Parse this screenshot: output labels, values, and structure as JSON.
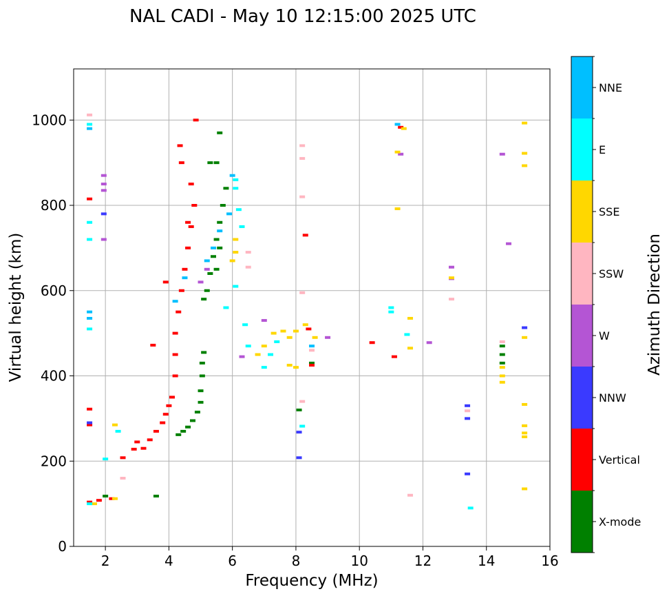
{
  "chart_data": {
    "type": "scatter",
    "title": "NAL CADI - May 10 12:15:00 2025 UTC",
    "xlabel": "Frequency (MHz)",
    "ylabel": "Virtual height (km)",
    "xlim": [
      1,
      16
    ],
    "ylim": [
      0,
      1120
    ],
    "xticks": [
      2,
      4,
      6,
      8,
      10,
      12,
      14,
      16
    ],
    "yticks": [
      0,
      200,
      400,
      600,
      800,
      1000
    ],
    "grid": true,
    "colorbar": {
      "title": "Azimuth Direction",
      "position": "right",
      "categories": [
        {
          "name": "X-mode",
          "color": "#008000"
        },
        {
          "name": "Vertical",
          "color": "#ff0000"
        },
        {
          "name": "NNW",
          "color": "#3a3aff"
        },
        {
          "name": "W",
          "color": "#b455d4"
        },
        {
          "name": "SSW",
          "color": "#ffb6c1"
        },
        {
          "name": "SSE",
          "color": "#ffd700"
        },
        {
          "name": "E",
          "color": "#00ffff"
        },
        {
          "name": "NNE",
          "color": "#00bfff"
        }
      ]
    },
    "series": [
      {
        "name": "X-mode",
        "points": [
          [
            4.3,
            262
          ],
          [
            4.45,
            270
          ],
          [
            4.6,
            280
          ],
          [
            4.75,
            295
          ],
          [
            4.9,
            315
          ],
          [
            5.0,
            338
          ],
          [
            5.0,
            365
          ],
          [
            5.05,
            400
          ],
          [
            5.05,
            430
          ],
          [
            5.1,
            455
          ],
          [
            5.1,
            580
          ],
          [
            5.2,
            600
          ],
          [
            5.3,
            640
          ],
          [
            5.4,
            680
          ],
          [
            5.5,
            720
          ],
          [
            5.6,
            760
          ],
          [
            5.7,
            800
          ],
          [
            5.8,
            840
          ],
          [
            5.5,
            900
          ],
          [
            5.6,
            970
          ],
          [
            5.3,
            900
          ],
          [
            5.5,
            650
          ],
          [
            5.6,
            700
          ],
          [
            2.0,
            118
          ],
          [
            3.6,
            118
          ],
          [
            8.1,
            320
          ],
          [
            8.5,
            430
          ],
          [
            14.5,
            470
          ],
          [
            14.5,
            450
          ],
          [
            14.5,
            430
          ]
        ]
      },
      {
        "name": "Vertical",
        "points": [
          [
            1.5,
            104
          ],
          [
            1.8,
            108
          ],
          [
            2.2,
            112
          ],
          [
            2.55,
            208
          ],
          [
            2.9,
            228
          ],
          [
            3.0,
            245
          ],
          [
            3.2,
            230
          ],
          [
            3.4,
            250
          ],
          [
            3.6,
            270
          ],
          [
            3.8,
            290
          ],
          [
            3.9,
            310
          ],
          [
            4.0,
            330
          ],
          [
            4.1,
            350
          ],
          [
            4.2,
            400
          ],
          [
            4.2,
            450
          ],
          [
            4.2,
            500
          ],
          [
            4.3,
            550
          ],
          [
            4.4,
            600
          ],
          [
            4.5,
            650
          ],
          [
            4.6,
            700
          ],
          [
            4.7,
            750
          ],
          [
            4.8,
            800
          ],
          [
            4.7,
            850
          ],
          [
            4.4,
            900
          ],
          [
            4.35,
            940
          ],
          [
            4.85,
            1000
          ],
          [
            4.6,
            760
          ],
          [
            8.3,
            730
          ],
          [
            8.4,
            510
          ],
          [
            8.5,
            425
          ],
          [
            10.4,
            478
          ],
          [
            11.1,
            445
          ],
          [
            3.5,
            472
          ],
          [
            3.9,
            620
          ],
          [
            1.5,
            815
          ],
          [
            1.5,
            322
          ],
          [
            1.5,
            285
          ],
          [
            11.3,
            983
          ]
        ]
      },
      {
        "name": "NNW",
        "points": [
          [
            1.95,
            780
          ],
          [
            8.1,
            268
          ],
          [
            8.1,
            208
          ],
          [
            13.4,
            300
          ],
          [
            13.4,
            170
          ],
          [
            13.4,
            330
          ],
          [
            15.2,
            513
          ],
          [
            1.5,
            290
          ]
        ]
      },
      {
        "name": "W",
        "points": [
          [
            1.95,
            870
          ],
          [
            1.95,
            850
          ],
          [
            1.95,
            835
          ],
          [
            1.95,
            720
          ],
          [
            12.9,
            655
          ],
          [
            12.9,
            628
          ],
          [
            14.7,
            710
          ],
          [
            14.5,
            920
          ],
          [
            12.2,
            478
          ],
          [
            11.3,
            920
          ],
          [
            7.0,
            530
          ],
          [
            9.0,
            490
          ],
          [
            6.3,
            445
          ],
          [
            5.0,
            620
          ],
          [
            5.2,
            650
          ]
        ]
      },
      {
        "name": "SSW",
        "points": [
          [
            1.5,
            1012
          ],
          [
            8.2,
            940
          ],
          [
            8.2,
            910
          ],
          [
            8.2,
            820
          ],
          [
            8.2,
            595
          ],
          [
            8.2,
            340
          ],
          [
            12.9,
            580
          ],
          [
            13.4,
            318
          ],
          [
            14.5,
            480
          ],
          [
            6.5,
            690
          ],
          [
            6.5,
            655
          ],
          [
            8.5,
            460
          ],
          [
            2.55,
            160
          ],
          [
            11.6,
            120
          ]
        ]
      },
      {
        "name": "SSE",
        "points": [
          [
            1.65,
            100
          ],
          [
            2.3,
            112
          ],
          [
            2.3,
            285
          ],
          [
            6.1,
            720
          ],
          [
            6.1,
            690
          ],
          [
            6.0,
            670
          ],
          [
            6.8,
            450
          ],
          [
            7.0,
            470
          ],
          [
            7.3,
            500
          ],
          [
            7.6,
            505
          ],
          [
            7.8,
            490
          ],
          [
            8.0,
            505
          ],
          [
            8.3,
            520
          ],
          [
            8.6,
            490
          ],
          [
            7.8,
            425
          ],
          [
            8.0,
            420
          ],
          [
            11.2,
            925
          ],
          [
            11.2,
            792
          ],
          [
            11.4,
            980
          ],
          [
            11.6,
            535
          ],
          [
            11.6,
            465
          ],
          [
            12.9,
            630
          ],
          [
            14.5,
            420
          ],
          [
            14.5,
            400
          ],
          [
            14.5,
            385
          ],
          [
            15.2,
            993
          ],
          [
            15.2,
            922
          ],
          [
            15.2,
            893
          ],
          [
            15.2,
            490
          ],
          [
            15.2,
            333
          ],
          [
            15.2,
            283
          ],
          [
            15.2,
            266
          ],
          [
            15.2,
            257
          ],
          [
            15.2,
            135
          ]
        ]
      },
      {
        "name": "E",
        "points": [
          [
            1.5,
            100
          ],
          [
            1.5,
            990
          ],
          [
            1.5,
            760
          ],
          [
            1.5,
            720
          ],
          [
            1.5,
            510
          ],
          [
            6.1,
            860
          ],
          [
            6.1,
            840
          ],
          [
            6.2,
            790
          ],
          [
            6.3,
            750
          ],
          [
            6.1,
            610
          ],
          [
            5.8,
            560
          ],
          [
            6.4,
            520
          ],
          [
            6.5,
            470
          ],
          [
            7.0,
            420
          ],
          [
            7.2,
            450
          ],
          [
            7.4,
            480
          ],
          [
            11.0,
            560
          ],
          [
            11.0,
            550
          ],
          [
            11.5,
            497
          ],
          [
            8.2,
            282
          ],
          [
            13.5,
            90
          ],
          [
            2.4,
            270
          ],
          [
            2.0,
            205
          ]
        ]
      },
      {
        "name": "NNE",
        "points": [
          [
            1.5,
            980
          ],
          [
            1.5,
            550
          ],
          [
            1.5,
            535
          ],
          [
            4.2,
            575
          ],
          [
            4.5,
            630
          ],
          [
            5.2,
            670
          ],
          [
            5.4,
            700
          ],
          [
            5.6,
            740
          ],
          [
            5.9,
            780
          ],
          [
            6.0,
            870
          ],
          [
            11.2,
            990
          ],
          [
            8.5,
            470
          ]
        ]
      }
    ]
  }
}
